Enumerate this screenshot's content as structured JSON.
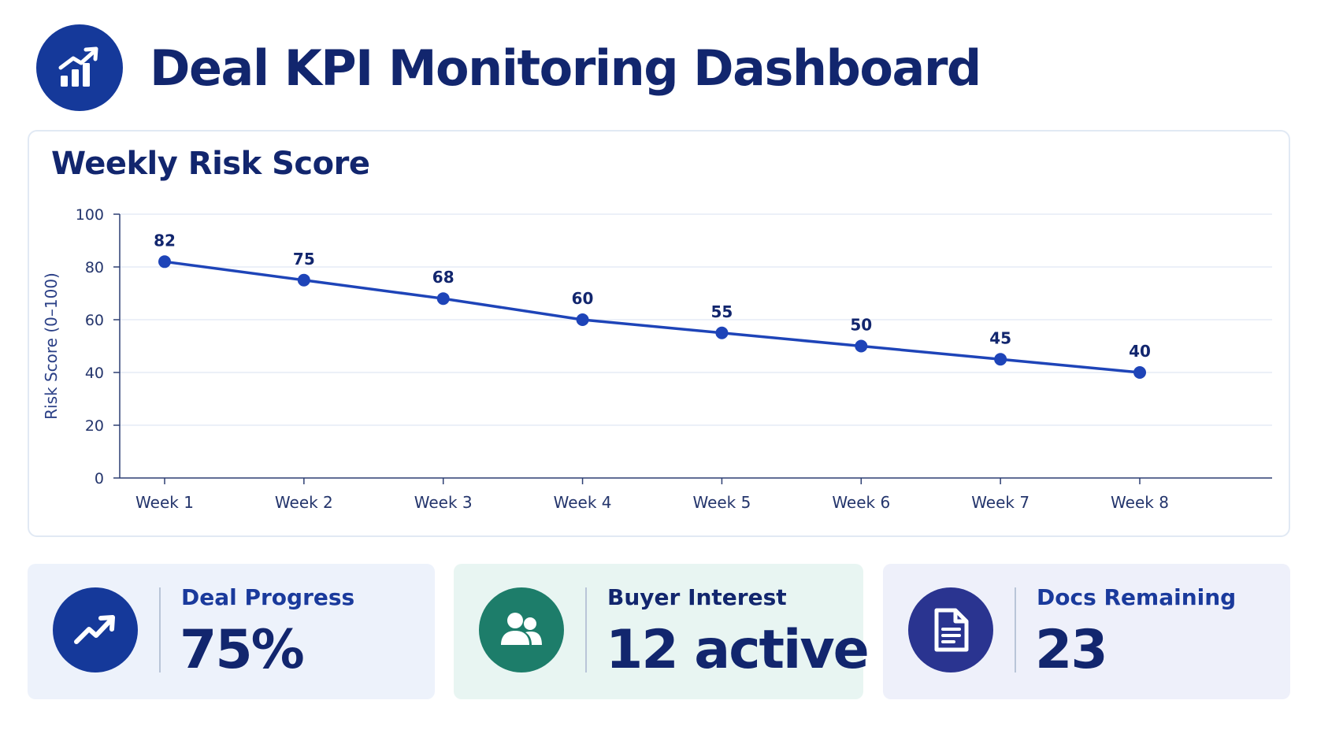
{
  "header": {
    "title": "Deal KPI Monitoring Dashboard",
    "logo_icon": "bar-chart-trend-icon"
  },
  "colors": {
    "primary": "#15399a",
    "title_text": "#12266e",
    "line": "#1e44b8",
    "buyer_icon_bg": "#1d7d6a",
    "docs_icon_bg": "#2a3490"
  },
  "chart_data": {
    "type": "line",
    "title": "Weekly Risk Score",
    "xlabel": "",
    "ylabel": "Risk Score (0–100)",
    "categories": [
      "Week 1",
      "Week 2",
      "Week 3",
      "Week 4",
      "Week 5",
      "Week 6",
      "Week 7",
      "Week 8"
    ],
    "values": [
      82,
      75,
      68,
      60,
      55,
      50,
      45,
      40
    ],
    "ylim": [
      0,
      100
    ],
    "yticks": [
      0,
      20,
      40,
      60,
      80,
      100
    ],
    "grid": true,
    "data_labels": true,
    "legend": "none"
  },
  "kpis": [
    {
      "label": "Deal Progress",
      "value": "75%",
      "icon": "trending-up-icon",
      "icon_color": "#15399a"
    },
    {
      "label": "Buyer Interest",
      "value": "12 active",
      "icon": "users-icon",
      "icon_color": "#1d7d6a"
    },
    {
      "label": "Docs Remaining",
      "value": "23",
      "icon": "document-icon",
      "icon_color": "#2a3490"
    }
  ]
}
